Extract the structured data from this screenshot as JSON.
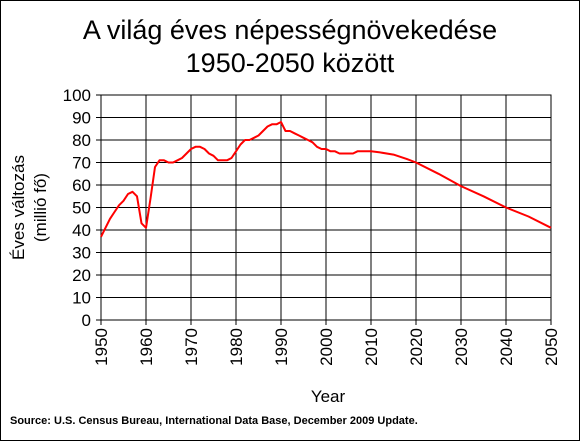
{
  "chart_data": {
    "type": "line",
    "title": "A világ éves népességnövekedése\n1950-2050 között",
    "xlabel": "Year",
    "ylabel_line1": "Éves változás",
    "ylabel_line2": "(millió fő)",
    "xlim": [
      1950,
      2050
    ],
    "ylim": [
      0,
      100
    ],
    "x_ticks": [
      1950,
      1960,
      1970,
      1980,
      1990,
      2000,
      2010,
      2020,
      2030,
      2040,
      2050
    ],
    "y_ticks": [
      0,
      10,
      20,
      30,
      40,
      50,
      60,
      70,
      80,
      90,
      100
    ],
    "grid": true,
    "legend": "none",
    "line_color": "#ff0000",
    "source": "Source: U.S. Census Bureau, International Data Base, December 2009 Update.",
    "series": [
      {
        "x": [
          1950,
          1951,
          1952,
          1953,
          1954,
          1955,
          1956,
          1957,
          1958,
          1959,
          1960,
          1961,
          1962,
          1963,
          1964,
          1965,
          1966,
          1967,
          1968,
          1969,
          1970,
          1971,
          1972,
          1973,
          1974,
          1975,
          1976,
          1977,
          1978,
          1979,
          1980,
          1981,
          1982,
          1983,
          1984,
          1985,
          1986,
          1987,
          1988,
          1989,
          1990,
          1991,
          1992,
          1993,
          1994,
          1995,
          1996,
          1997,
          1998,
          1999,
          2000,
          2001,
          2002,
          2003,
          2004,
          2005,
          2006,
          2007,
          2008,
          2009,
          2010,
          2012,
          2015,
          2018,
          2020,
          2025,
          2030,
          2035,
          2040,
          2045,
          2050
        ],
        "y": [
          37,
          41,
          45,
          48,
          51,
          53,
          56,
          57,
          55,
          43,
          41,
          54,
          68,
          71,
          71,
          70,
          70,
          71,
          72,
          74,
          76,
          77,
          77,
          76,
          74,
          73,
          71,
          71,
          71,
          72,
          75,
          78,
          80,
          80,
          81,
          82,
          84,
          86,
          87,
          87,
          88,
          84,
          84,
          83,
          82,
          81,
          80,
          79,
          77,
          76,
          76,
          75,
          75,
          74,
          74,
          74,
          74,
          75,
          75,
          75,
          75,
          74.5,
          73.5,
          71.5,
          70,
          65,
          59.5,
          55,
          50,
          46,
          41
        ]
      }
    ]
  }
}
